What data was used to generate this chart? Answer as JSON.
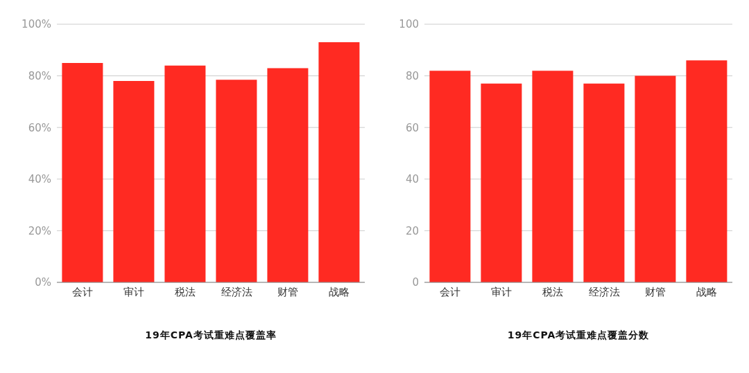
{
  "chart_data": [
    {
      "type": "bar",
      "title": "19年CPA考试重难点覆盖率",
      "categories": [
        "会计",
        "审计",
        "税法",
        "经济法",
        "财管",
        "战略"
      ],
      "values": [
        85,
        78,
        84,
        78.5,
        83,
        93
      ],
      "color": "#ff2a22",
      "ylim": [
        0,
        100
      ],
      "yticks": [
        {
          "value": 0,
          "label": "0%"
        },
        {
          "value": 20,
          "label": "20%"
        },
        {
          "value": 40,
          "label": "40%"
        },
        {
          "value": 60,
          "label": "60%"
        },
        {
          "value": 80,
          "label": "80%"
        },
        {
          "value": 100,
          "label": "100%"
        }
      ],
      "grid": "y"
    },
    {
      "type": "bar",
      "title": "19年CPA考试重难点覆盖分数",
      "categories": [
        "会计",
        "审计",
        "税法",
        "经济法",
        "财管",
        "战略"
      ],
      "values": [
        82,
        77,
        82,
        77,
        80,
        86
      ],
      "color": "#ff2a22",
      "ylim": [
        0,
        100
      ],
      "yticks": [
        0,
        20,
        40,
        60,
        80,
        100
      ],
      "grid": "y"
    }
  ]
}
